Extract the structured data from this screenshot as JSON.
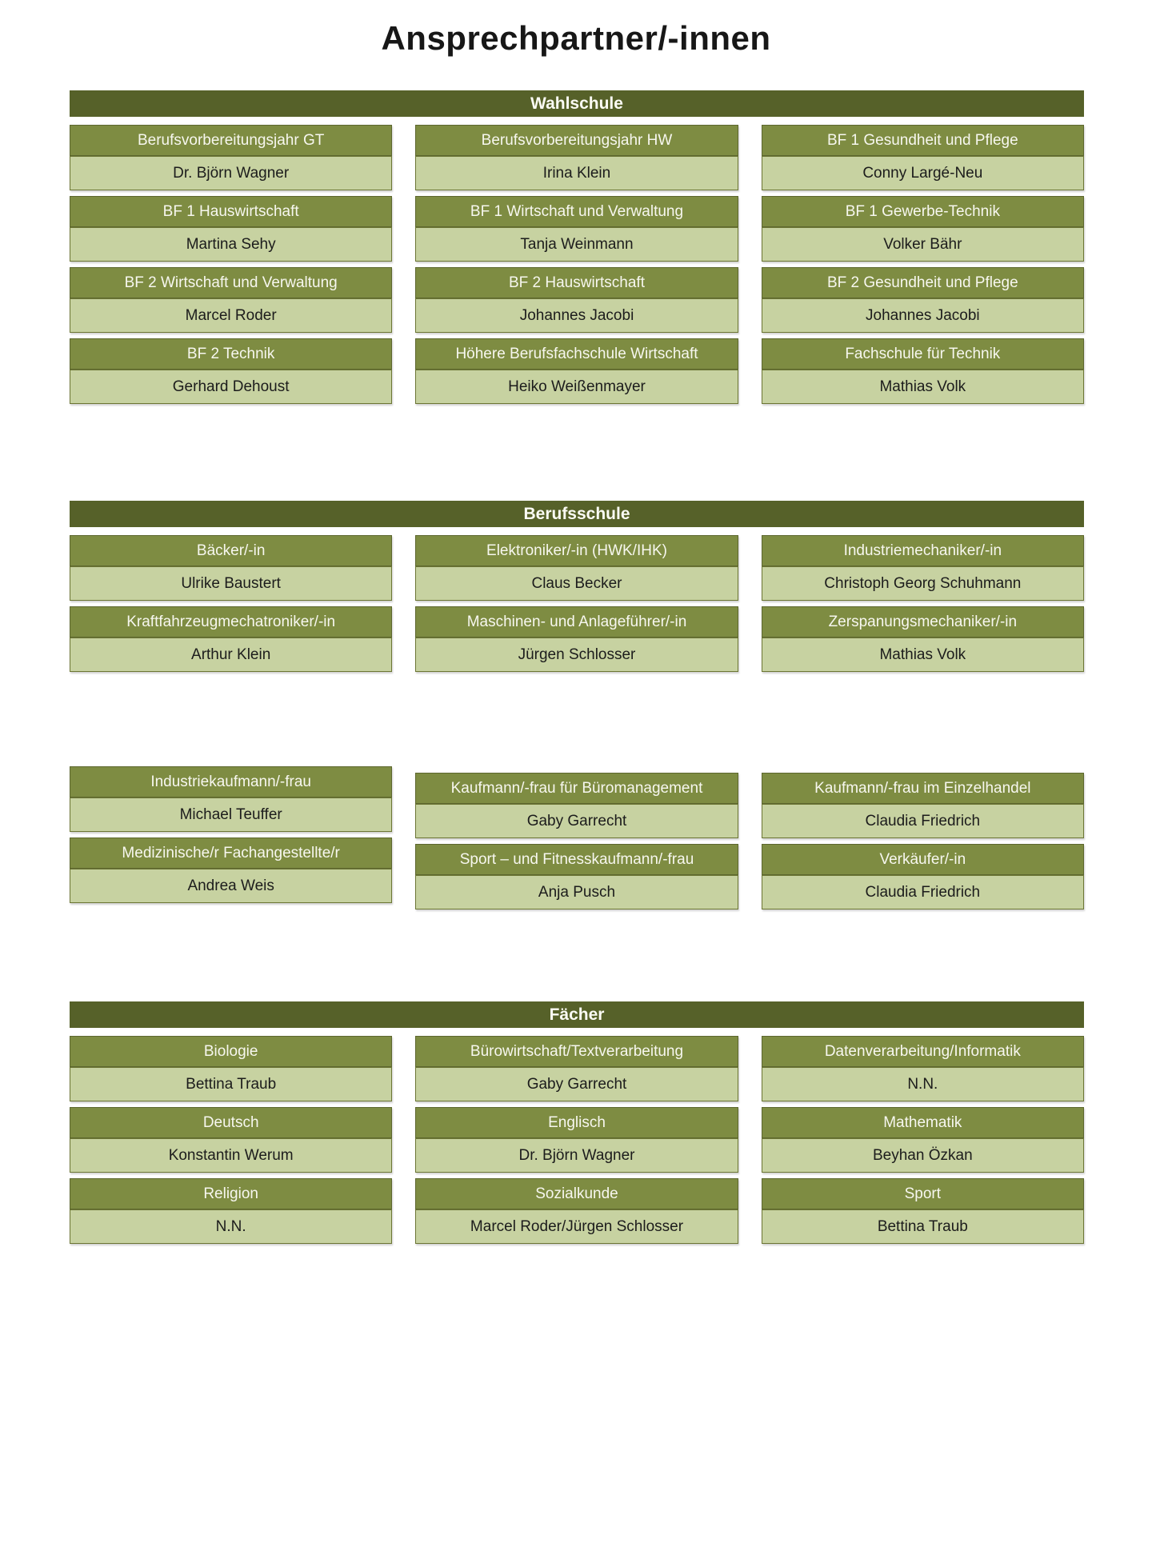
{
  "page": {
    "title": "Ansprechpartner/-innen"
  },
  "colors": {
    "section_bar": "#566129",
    "card_header": "#7e8c42",
    "card_body": "#c7d2a1",
    "bar_text": "#fbfbf4",
    "body_text": "#1c1c1c"
  },
  "sections": [
    {
      "title": "Wahlschule",
      "columns": [
        [
          {
            "role": "Berufsvorbereitungsjahr GT",
            "person": "Dr. Björn Wagner"
          },
          {
            "role": "BF 1 Hauswirtschaft",
            "person": "Martina Sehy"
          },
          {
            "role": "BF 2 Wirtschaft und Verwaltung",
            "person": "Marcel Roder"
          },
          {
            "role": "BF 2 Technik",
            "person": "Gerhard Dehoust"
          }
        ],
        [
          {
            "role": "Berufsvorbereitungsjahr HW",
            "person": "Irina Klein"
          },
          {
            "role": "BF 1 Wirtschaft und Verwaltung",
            "person": "Tanja Weinmann"
          },
          {
            "role": "BF 2 Hauswirtschaft",
            "person": "Johannes Jacobi"
          },
          {
            "role": "Höhere Berufsfachschule Wirtschaft",
            "person": "Heiko Weißenmayer"
          }
        ],
        [
          {
            "role": "BF 1 Gesundheit und Pflege",
            "person": "Conny Largé-Neu"
          },
          {
            "role": "BF 1 Gewerbe-Technik",
            "person": "Volker Bähr"
          },
          {
            "role": "BF 2 Gesundheit und Pflege",
            "person": "Johannes Jacobi"
          },
          {
            "role": "Fachschule für Technik",
            "person": "Mathias Volk"
          }
        ]
      ]
    },
    {
      "title": "Berufsschule",
      "columns": [
        [
          {
            "role": "Bäcker/-in",
            "person": "Ulrike Baustert"
          },
          {
            "role": "Kraftfahrzeugmechatroniker/-in",
            "person": "Arthur Klein"
          }
        ],
        [
          {
            "role": "Elektroniker/-in (HWK/IHK)",
            "person": "Claus Becker"
          },
          {
            "role": "Maschinen- und Anlageführer/-in",
            "person": "Jürgen Schlosser"
          }
        ],
        [
          {
            "role": "Industriemechaniker/-in",
            "person": "Christoph Georg Schuhmann"
          },
          {
            "role": "Zerspanungsmechaniker/-in",
            "person": "Mathias Volk"
          }
        ]
      ]
    },
    {
      "title": "",
      "columns": [
        [
          {
            "role": "Industriekaufmann/-frau",
            "person": "Michael Teuffer"
          },
          {
            "role": "Medizinische/r Fachangestellte/r",
            "person": "Andrea Weis"
          }
        ],
        [
          {
            "role": "Kaufmann/-frau für Büromanagement",
            "person": "Gaby Garrecht"
          },
          {
            "role": "Sport – und Fitnesskaufmann/-frau",
            "person": "Anja Pusch"
          }
        ],
        [
          {
            "role": "Kaufmann/-frau im Einzelhandel",
            "person": "Claudia Friedrich"
          },
          {
            "role": "Verkäufer/-in",
            "person": "Claudia Friedrich"
          }
        ]
      ]
    },
    {
      "title": "Fächer",
      "columns": [
        [
          {
            "role": "Biologie",
            "person": "Bettina Traub"
          },
          {
            "role": "Deutsch",
            "person": "Konstantin Werum"
          },
          {
            "role": "Religion",
            "person": "N.N."
          }
        ],
        [
          {
            "role": "Bürowirtschaft/Textverarbeitung",
            "person": "Gaby Garrecht"
          },
          {
            "role": "Englisch",
            "person": "Dr. Björn Wagner"
          },
          {
            "role": "Sozialkunde",
            "person": "Marcel Roder/Jürgen Schlosser"
          }
        ],
        [
          {
            "role": "Datenverarbeitung/Informatik",
            "person": "N.N."
          },
          {
            "role": "Mathematik",
            "person": "Beyhan Özkan"
          },
          {
            "role": "Sport",
            "person": "Bettina Traub"
          }
        ]
      ]
    }
  ]
}
